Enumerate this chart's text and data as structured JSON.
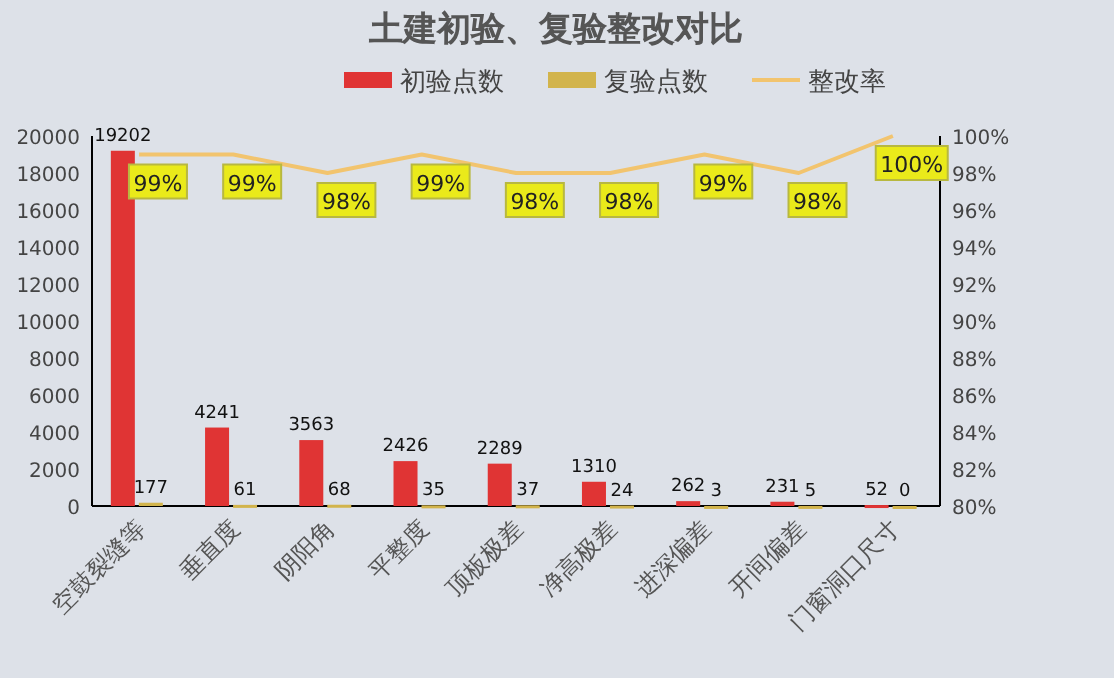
{
  "chart_data": {
    "type": "bar",
    "title": "土建初验、复验整改对比",
    "categories": [
      "空鼓裂缝等",
      "垂直度",
      "阴阳角",
      "平整度",
      "顶板极差",
      "净高极差",
      "进深偏差",
      "开间偏差",
      "门窗洞口尺寸"
    ],
    "series": [
      {
        "name": "初验点数",
        "color": "#e03434",
        "values": [
          19202,
          4241,
          3563,
          2426,
          2289,
          1310,
          262,
          231,
          52
        ]
      },
      {
        "name": "复验点数",
        "color": "#d2b44c",
        "values": [
          177,
          61,
          68,
          35,
          37,
          24,
          3,
          5,
          0
        ]
      },
      {
        "name": "整改率",
        "type": "line",
        "axis": "y2",
        "marker": "none",
        "color": "#f2c46e",
        "values": [
          99,
          99,
          98,
          99,
          98,
          98,
          99,
          98,
          100
        ],
        "value_labels": [
          "99%",
          "99%",
          "98%",
          "99%",
          "98%",
          "98%",
          "99%",
          "98%",
          "100%"
        ]
      }
    ],
    "data_labels": true,
    "ylim": [
      0,
      20000
    ],
    "yticks": [
      0,
      2000,
      4000,
      6000,
      8000,
      10000,
      12000,
      14000,
      16000,
      18000,
      20000
    ],
    "y2lim": [
      80,
      100
    ],
    "y2ticks": [
      {
        "value": 80,
        "label": "80%"
      },
      {
        "value": 82,
        "label": "82%"
      },
      {
        "value": 84,
        "label": "84%"
      },
      {
        "value": 86,
        "label": "86%"
      },
      {
        "value": 88,
        "label": "88%"
      },
      {
        "value": 90,
        "label": "90%"
      },
      {
        "value": 92,
        "label": "92%"
      },
      {
        "value": 94,
        "label": "94%"
      },
      {
        "value": 96,
        "label": "96%"
      },
      {
        "value": 98,
        "label": "98%"
      },
      {
        "value": 100,
        "label": "100%"
      }
    ],
    "legend": "top",
    "grid": false
  }
}
